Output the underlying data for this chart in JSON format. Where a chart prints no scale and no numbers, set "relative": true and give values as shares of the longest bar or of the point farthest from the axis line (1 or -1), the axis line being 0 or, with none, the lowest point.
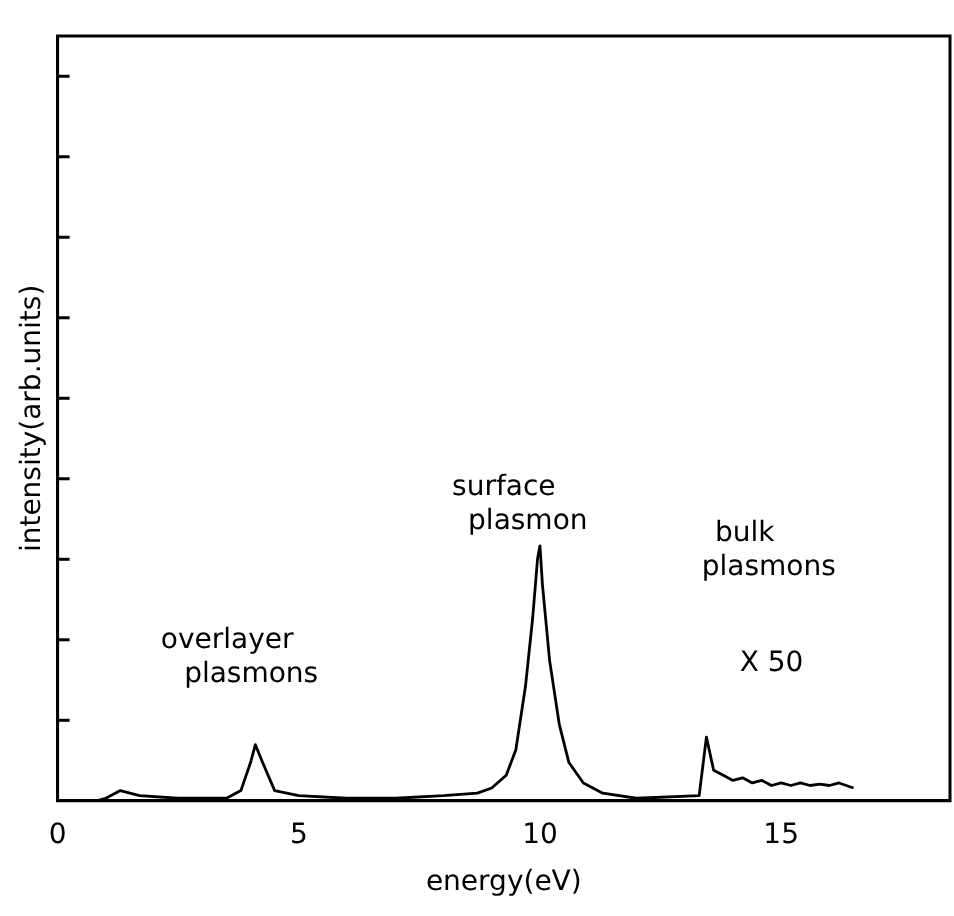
{
  "chart_data": {
    "type": "line",
    "xlabel": "energy(eV)",
    "ylabel": "intensity(arb.units)",
    "relative": true,
    "xlim": [
      0,
      18.5
    ],
    "xticks": [
      0,
      5,
      10,
      15
    ],
    "grid": false,
    "legend": false,
    "marker": "none",
    "line_style": "solid",
    "series": [
      {
        "color": "#000000",
        "x": [
          0.8,
          1.0,
          1.3,
          1.7,
          2.5,
          3.5,
          3.8,
          4.0,
          4.1,
          4.25,
          4.5,
          5,
          6,
          7,
          8,
          8.7,
          9.0,
          9.3,
          9.5,
          9.7,
          9.85,
          9.95,
          10,
          10.05,
          10.2,
          10.4,
          10.6,
          10.9,
          11.3,
          12,
          13.3,
          13.45,
          13.6,
          13.8,
          14.0,
          14.2,
          14.4,
          14.6,
          14.8,
          15,
          15.2,
          15.4,
          15.6,
          15.8,
          16,
          16.2,
          16.5
        ],
        "values": [
          0,
          0.01,
          0.04,
          0.02,
          0.01,
          0.01,
          0.04,
          0.15,
          0.22,
          0.15,
          0.04,
          0.02,
          0.01,
          0.01,
          0.02,
          0.03,
          0.05,
          0.1,
          0.2,
          0.45,
          0.72,
          0.95,
          1.0,
          0.85,
          0.55,
          0.3,
          0.15,
          0.07,
          0.03,
          0.01,
          0.02,
          0.25,
          0.12,
          0.1,
          0.08,
          0.09,
          0.07,
          0.08,
          0.06,
          0.07,
          0.06,
          0.07,
          0.06,
          0.065,
          0.06,
          0.07,
          0.05
        ]
      }
    ],
    "annotations": [
      "surface\nplasmon",
      "overlayer\nplasmons",
      "bulk\nplasmons",
      "X 50"
    ]
  }
}
